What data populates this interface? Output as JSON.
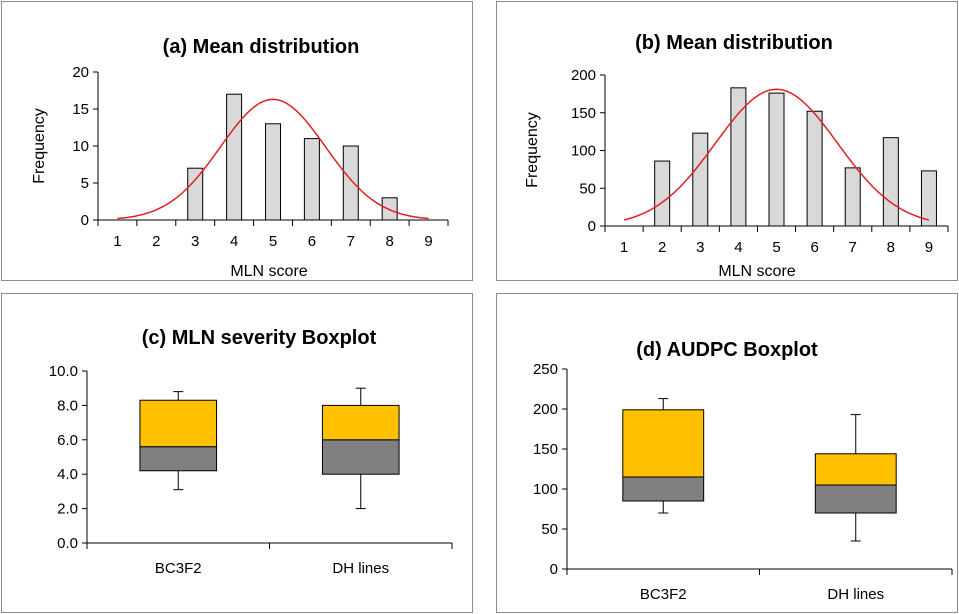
{
  "chart_data": [
    {
      "id": "a",
      "type": "bar",
      "title": "(a)  Mean distribution",
      "xlabel": "MLN score",
      "ylabel": "Frequency",
      "categories": [
        "1",
        "2",
        "3",
        "4",
        "5",
        "6",
        "7",
        "8",
        "9"
      ],
      "values": [
        0,
        0,
        7,
        17,
        13,
        11,
        10,
        3,
        0
      ],
      "ylim": [
        0,
        20
      ],
      "yticks": [
        "0",
        "5",
        "10",
        "15",
        "20"
      ],
      "curve": {
        "type": "normal",
        "mean": 5,
        "sd": 1.35,
        "peak": 16.3,
        "color": "#e02020"
      },
      "bar_color": "#d9d9d9",
      "grid": false
    },
    {
      "id": "b",
      "type": "bar",
      "title": "(b) Mean distribution",
      "xlabel": "MLN score",
      "ylabel": "Frequency",
      "categories": [
        "1",
        "2",
        "3",
        "4",
        "5",
        "6",
        "7",
        "8",
        "9"
      ],
      "values": [
        0,
        86,
        123,
        183,
        176,
        152,
        77,
        117,
        73
      ],
      "ylim": [
        0,
        200
      ],
      "yticks": [
        "0",
        "50",
        "100",
        "150",
        "200"
      ],
      "curve": {
        "type": "normal",
        "mean": 5,
        "sd": 1.6,
        "peak": 181,
        "color": "#e02020"
      },
      "bar_color": "#d9d9d9",
      "grid": false
    },
    {
      "id": "c",
      "type": "boxplot",
      "title": "(c)   MLN severity Boxplot",
      "xlabel": "",
      "ylabel": "",
      "categories": [
        "BC3F2",
        "DH lines"
      ],
      "boxes": [
        {
          "name": "BC3F2",
          "min": 3.1,
          "q1": 4.2,
          "median": 5.6,
          "q3": 8.3,
          "max": 8.8
        },
        {
          "name": "DH lines",
          "min": 2.0,
          "q1": 4.0,
          "median": 6.0,
          "q3": 8.0,
          "max": 9.0
        }
      ],
      "ylim": [
        0,
        10
      ],
      "yticks": [
        "0.0",
        "2.0",
        "4.0",
        "6.0",
        "8.0",
        "10.0"
      ],
      "lower_color": "#808080",
      "upper_color": "#ffc000",
      "grid": false
    },
    {
      "id": "d",
      "type": "boxplot",
      "title": "(d)   AUDPC Boxplot",
      "xlabel": "",
      "ylabel": "",
      "categories": [
        "BC3F2",
        "DH lines"
      ],
      "boxes": [
        {
          "name": "BC3F2",
          "min": 70,
          "q1": 85,
          "median": 115,
          "q3": 199,
          "max": 213
        },
        {
          "name": "DH lines",
          "min": 35,
          "q1": 70,
          "median": 105,
          "q3": 144,
          "max": 193
        }
      ],
      "ylim": [
        0,
        250
      ],
      "yticks": [
        "0",
        "50",
        "100",
        "150",
        "200",
        "250"
      ],
      "lower_color": "#808080",
      "upper_color": "#ffc000",
      "grid": false
    }
  ]
}
